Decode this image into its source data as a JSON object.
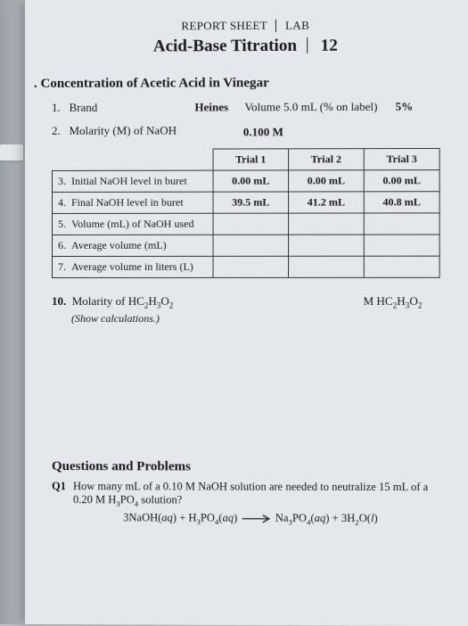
{
  "header": {
    "left": "REPORT SHEET",
    "right": "LAB",
    "title": "Acid-Base Titration",
    "labnum": "12"
  },
  "section": ". Concentration of Acetic Acid in Vinegar",
  "line1": {
    "num": "1.",
    "label": "Brand",
    "value": "Heines",
    "mid": "Volume  5.0 mL   (% on label)",
    "pct": "5%"
  },
  "line2": {
    "num": "2.",
    "label": "Molarity (M) of NaOH",
    "value": "0.100 M"
  },
  "table": {
    "cols": [
      "Trial 1",
      "Trial 2",
      "Trial 3"
    ],
    "rows": [
      {
        "n": "3.",
        "label": "Initial NaOH level in buret",
        "c": [
          "0.00 mL",
          "0.00 mL",
          "0.00 mL"
        ]
      },
      {
        "n": "4.",
        "label": "Final NaOH level in buret",
        "c": [
          "39.5 mL",
          "41.2 mL",
          "40.8 mL"
        ]
      },
      {
        "n": "5.",
        "label": "Volume (mL) of NaOH used",
        "c": [
          "",
          "",
          ""
        ]
      },
      {
        "n": "6.",
        "label": "Average volume (mL)",
        "c": [
          "",
          "",
          ""
        ]
      },
      {
        "n": "7.",
        "label": "Average volume in liters (L)",
        "c": [
          "",
          "",
          ""
        ]
      }
    ]
  },
  "mol": {
    "num": "10.",
    "label_pre": "Molarity of ",
    "formula": "HC₂H₃O₂",
    "right_pre": "M ",
    "show": "(Show calculations.)"
  },
  "qp": {
    "title": "Questions and Problems",
    "q1num": "Q1",
    "q1a": "How many mL of a 0.10 M NaOH solution are needed to neutralize 15 mL of a",
    "q1b": "0.20 M H₃PO₄ solution?",
    "eqn_l": "3NaOH(aq) + H₃PO₄(aq)",
    "eqn_r": "Na₃PO₄(aq) + 3H₂O(l)"
  },
  "style": {
    "page_bg": "#e4e8ec",
    "text": "#1a1a1a",
    "border": "#333333"
  }
}
